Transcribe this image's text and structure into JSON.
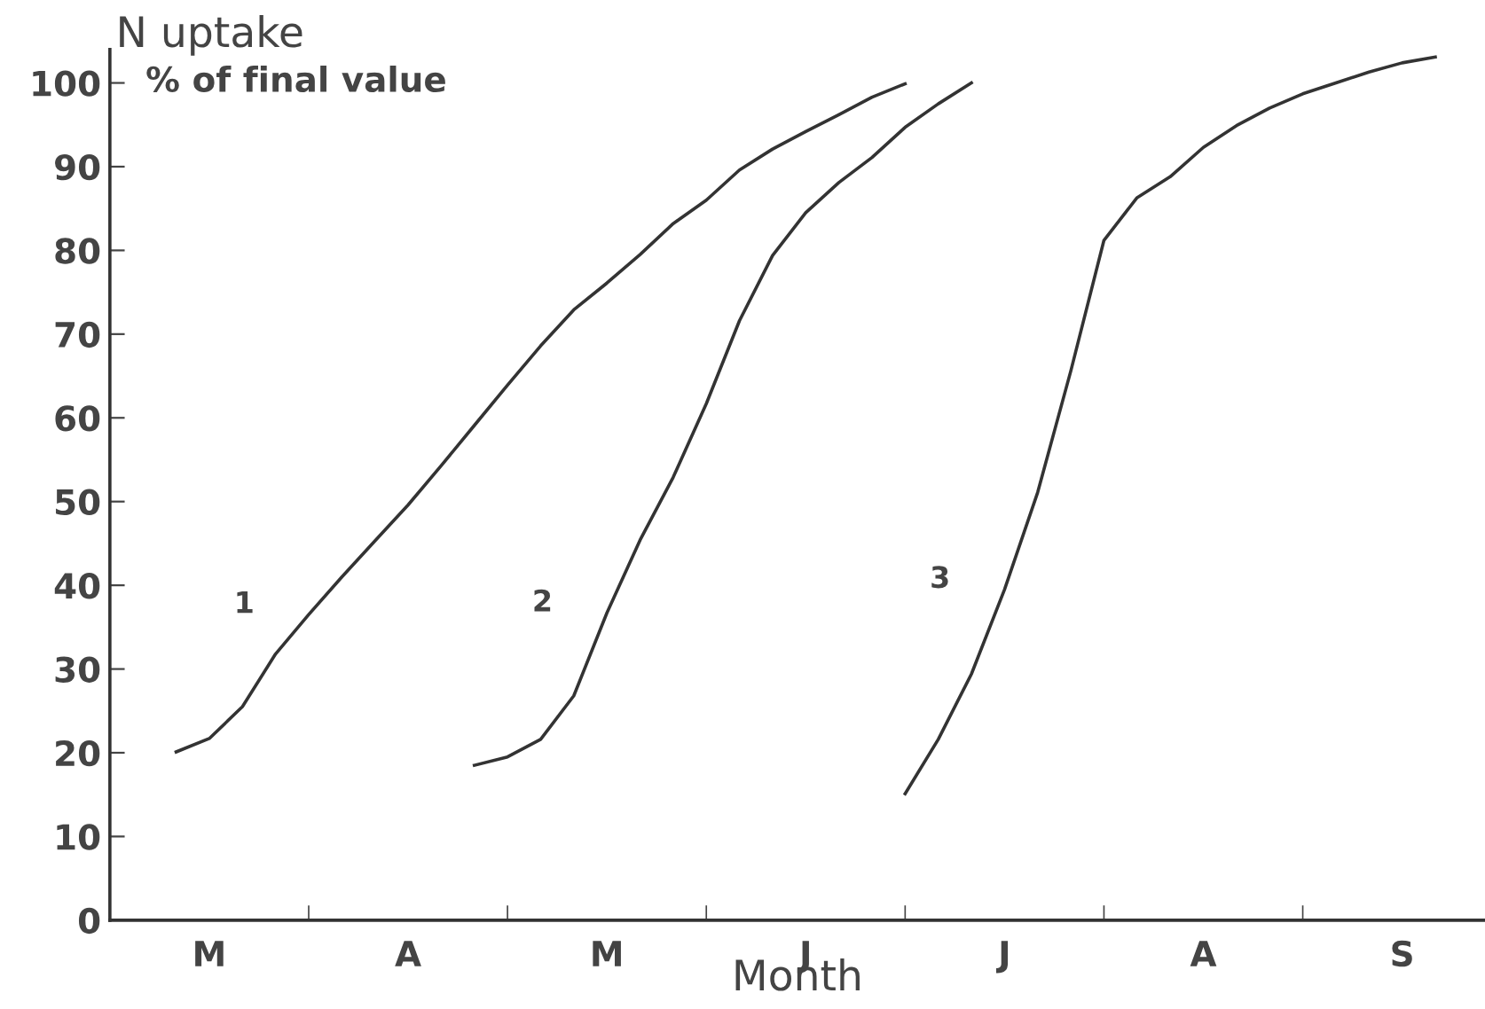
{
  "chart_data": {
    "type": "line",
    "title": "N uptake",
    "subtitle": "% of final value",
    "xlabel": "Month",
    "categories": [
      null,
      null,
      null,
      "M",
      null,
      null,
      null,
      null,
      null,
      "A",
      null,
      null,
      null,
      null,
      null,
      "M",
      null,
      null,
      null,
      null,
      null,
      "J",
      null,
      null,
      null,
      null,
      null,
      "J",
      null,
      null,
      null,
      null,
      null,
      "A",
      null,
      null,
      null,
      null,
      null,
      "S",
      null,
      null
    ],
    "ylim": [
      0,
      104
    ],
    "yticks": [
      0,
      10,
      20,
      30,
      40,
      50,
      60,
      70,
      80,
      90,
      100
    ],
    "grid": false,
    "legend": false,
    "marker": "none",
    "line_style": "solid",
    "series": [
      {
        "name": "1",
        "color": "#333333",
        "values": [
          null,
          null,
          20.1,
          21.7,
          25.5,
          31.8,
          36.5,
          41.0,
          45.3,
          49.6,
          54.3,
          59.1,
          63.9,
          68.6,
          72.9,
          76.1,
          79.5,
          83.2,
          86.0,
          89.6,
          92.1,
          94.2,
          96.2,
          98.3,
          99.9,
          null,
          null,
          null,
          null,
          null,
          null,
          null,
          null,
          null,
          null,
          null,
          null,
          null,
          null,
          null,
          null,
          null
        ]
      },
      {
        "name": "2",
        "color": "#333333",
        "values": [
          null,
          null,
          null,
          null,
          null,
          null,
          null,
          null,
          null,
          null,
          null,
          18.5,
          19.5,
          21.6,
          26.8,
          36.7,
          45.4,
          52.9,
          61.7,
          71.6,
          79.4,
          84.5,
          88.1,
          91.1,
          94.7,
          97.5,
          100.0,
          null,
          null,
          null,
          null,
          null,
          null,
          null,
          null,
          null,
          null,
          null,
          null,
          null,
          null,
          null
        ]
      },
      {
        "name": "3",
        "color": "#333333",
        "values": [
          null,
          null,
          null,
          null,
          null,
          null,
          null,
          null,
          null,
          null,
          null,
          null,
          null,
          null,
          null,
          null,
          null,
          null,
          null,
          null,
          null,
          null,
          null,
          null,
          15.1,
          21.6,
          29.4,
          39.5,
          51.1,
          65.6,
          81.2,
          86.3,
          88.8,
          92.3,
          94.9,
          97.0,
          98.7,
          100.0,
          101.3,
          102.4,
          103.1,
          null
        ]
      }
    ]
  }
}
